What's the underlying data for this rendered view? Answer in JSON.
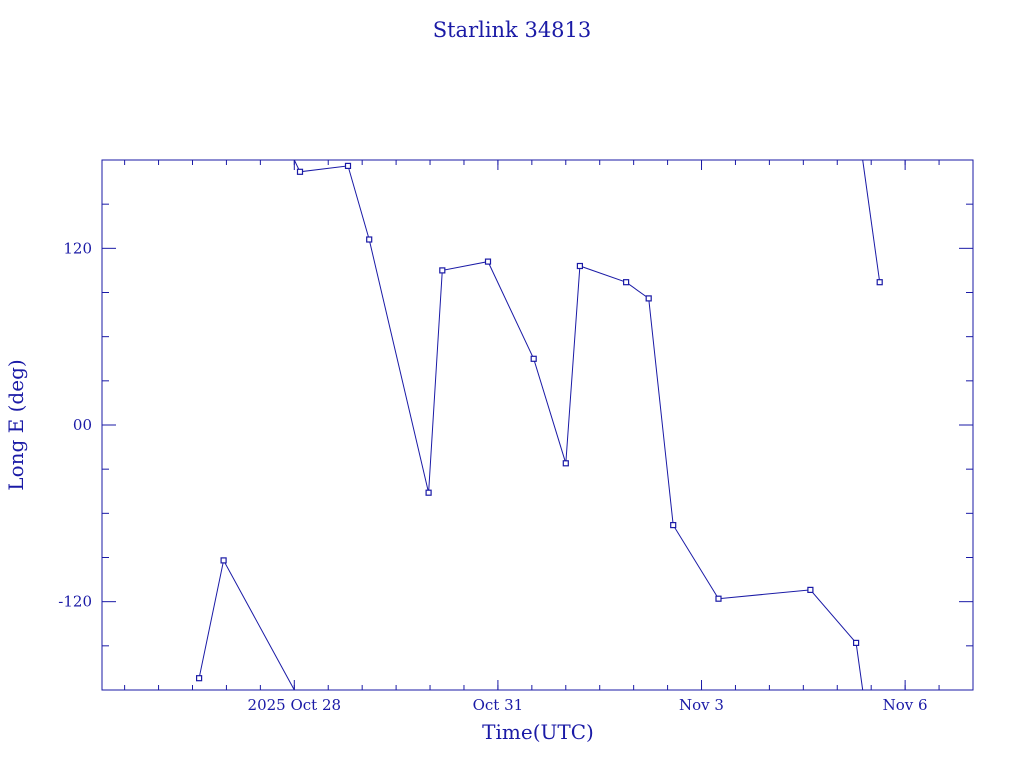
{
  "chart_data": {
    "type": "line",
    "title": "Starlink 34813",
    "xlabel": "Time(UTC)",
    "ylabel": "Long E (deg)",
    "xlim": [
      "2025-10-25T04:00",
      "2025-11-07T00:00"
    ],
    "ylim": [
      -180,
      180
    ],
    "grid": false,
    "x_ticks": [
      {
        "x": "2025-10-28T00:00",
        "label": "2025 Oct 28"
      },
      {
        "x": "2025-10-31T00:00",
        "label": "Oct 31"
      },
      {
        "x": "2025-11-03T00:00",
        "label": "Nov  3"
      },
      {
        "x": "2025-11-06T00:00",
        "label": "Nov  6"
      }
    ],
    "y_ticks": [
      {
        "y": 120,
        "label": "120"
      },
      {
        "y": 0,
        "label": "00"
      },
      {
        "y": -120,
        "label": "-120"
      }
    ],
    "segments": [
      {
        "points": [
          {
            "x": "2025-10-26T14:20",
            "y": -172,
            "marker": true
          },
          {
            "x": "2025-10-26T23:00",
            "y": -92,
            "marker": true
          },
          {
            "x": "2025-10-28T00:00",
            "y": -180,
            "marker": false
          }
        ]
      },
      {
        "points": [
          {
            "x": "2025-10-28T00:00",
            "y": 180,
            "marker": false
          },
          {
            "x": "2025-10-28T02:00",
            "y": 172,
            "marker": true
          },
          {
            "x": "2025-10-28T19:00",
            "y": 176,
            "marker": true
          },
          {
            "x": "2025-10-29T02:30",
            "y": 126,
            "marker": true
          },
          {
            "x": "2025-10-29T23:30",
            "y": -46,
            "marker": true
          },
          {
            "x": "2025-10-30T04:20",
            "y": 105,
            "marker": true
          },
          {
            "x": "2025-10-30T20:30",
            "y": 111,
            "marker": true
          },
          {
            "x": "2025-10-31T12:40",
            "y": 45,
            "marker": true
          },
          {
            "x": "2025-11-01T00:00",
            "y": -26,
            "marker": true
          },
          {
            "x": "2025-11-01T05:00",
            "y": 108,
            "marker": true
          },
          {
            "x": "2025-11-01T21:20",
            "y": 97,
            "marker": true
          },
          {
            "x": "2025-11-02T05:20",
            "y": 86,
            "marker": true
          },
          {
            "x": "2025-11-02T14:00",
            "y": -68,
            "marker": true
          },
          {
            "x": "2025-11-03T06:00",
            "y": -118,
            "marker": true
          },
          {
            "x": "2025-11-04T14:30",
            "y": -112,
            "marker": true
          },
          {
            "x": "2025-11-05T06:40",
            "y": -148,
            "marker": true
          },
          {
            "x": "2025-11-05T09:00",
            "y": -180,
            "marker": false
          }
        ]
      },
      {
        "points": [
          {
            "x": "2025-11-05T09:00",
            "y": 180,
            "marker": false
          },
          {
            "x": "2025-11-05T15:00",
            "y": 97,
            "marker": true
          }
        ]
      }
    ]
  }
}
